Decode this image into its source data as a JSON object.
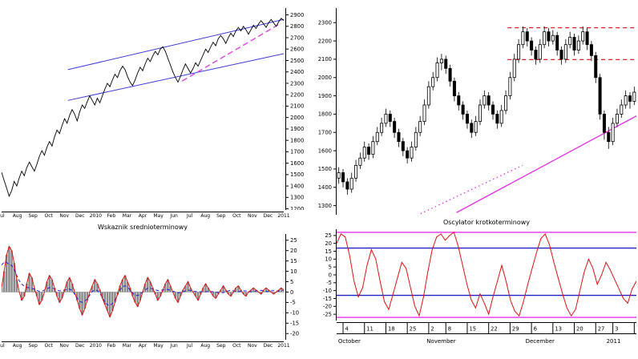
{
  "chart_data": [
    {
      "id": "left-price",
      "type": "line",
      "title": "",
      "ylabel": "",
      "y_min": 1190,
      "y_max": 2960,
      "y_ticks": [
        2900,
        2800,
        2700,
        2600,
        2500,
        2400,
        2300,
        2200,
        2100,
        2000,
        1900,
        1800,
        1700,
        1600,
        1500,
        1400,
        1300,
        1200
      ],
      "x_labels": [
        "Jul",
        "Aug",
        "Sep",
        "Oct",
        "Nov",
        "Dec",
        "2010",
        "Feb",
        "Mar",
        "Apr",
        "May",
        "Jun",
        "Jul",
        "Aug",
        "Sep",
        "Oct",
        "Nov",
        "Dec",
        "2011"
      ],
      "line_color": "#000000",
      "channel_color": "#3b3bd6",
      "channel": {
        "top": {
          "x1": 0.235,
          "y1": 2420,
          "x2": 1.0,
          "y2": 2860
        },
        "bottom": {
          "x1": 0.235,
          "y1": 2150,
          "x2": 1.0,
          "y2": 2560
        }
      },
      "trend_dashed": {
        "color": "#e040e0",
        "x1": 0.64,
        "y1": 2320,
        "x2": 0.985,
        "y2": 2820
      },
      "values": [
        1520,
        1450,
        1380,
        1310,
        1360,
        1440,
        1400,
        1470,
        1530,
        1490,
        1560,
        1610,
        1570,
        1530,
        1590,
        1660,
        1710,
        1670,
        1740,
        1790,
        1750,
        1830,
        1890,
        1860,
        1930,
        1990,
        1950,
        2020,
        2070,
        2030,
        1970,
        2050,
        2110,
        2080,
        2140,
        2190,
        2150,
        2110,
        2170,
        2130,
        2190,
        2250,
        2300,
        2270,
        2330,
        2380,
        2350,
        2410,
        2450,
        2420,
        2360,
        2310,
        2280,
        2330,
        2390,
        2440,
        2410,
        2470,
        2520,
        2490,
        2540,
        2580,
        2550,
        2600,
        2620,
        2580,
        2520,
        2460,
        2400,
        2350,
        2310,
        2360,
        2420,
        2470,
        2430,
        2390,
        2430,
        2480,
        2450,
        2500,
        2550,
        2600,
        2570,
        2620,
        2660,
        2630,
        2690,
        2720,
        2690,
        2650,
        2700,
        2740,
        2710,
        2760,
        2790,
        2760,
        2800,
        2770,
        2730,
        2770,
        2810,
        2780,
        2820,
        2850,
        2820,
        2790,
        2830,
        2860,
        2830,
        2800,
        2840,
        2870,
        2850
      ]
    },
    {
      "id": "left-oscillator",
      "type": "line+histogram",
      "title": "Wskaznik srednioterminowy",
      "y_min": -23,
      "y_max": 28,
      "y_ticks": [
        25,
        20,
        15,
        10,
        5,
        0,
        -5,
        -10,
        -15,
        -20
      ],
      "line_color": "#e01010",
      "signal_color": "#2020dd",
      "hist_color": "#8a8a8a",
      "values": [
        2,
        10,
        18,
        22,
        20,
        14,
        6,
        0,
        -4,
        -2,
        4,
        9,
        7,
        2,
        -2,
        -6,
        -4,
        0,
        5,
        8,
        6,
        2,
        -2,
        -5,
        -3,
        1,
        5,
        7,
        4,
        0,
        -4,
        -8,
        -11,
        -8,
        -4,
        0,
        3,
        6,
        4,
        1,
        -3,
        -6,
        -9,
        -12,
        -9,
        -5,
        -1,
        3,
        6,
        8,
        5,
        2,
        -2,
        -5,
        -7,
        -4,
        0,
        4,
        7,
        5,
        2,
        -1,
        -4,
        -2,
        1,
        4,
        6,
        3,
        0,
        -3,
        -5,
        -2,
        1,
        3,
        5,
        2,
        0,
        -2,
        -4,
        -1,
        2,
        4,
        2,
        0,
        -2,
        -3,
        -1,
        1,
        3,
        1,
        -1,
        -2,
        0,
        2,
        3,
        1,
        -1,
        -2,
        0,
        1,
        2,
        1,
        0,
        -1,
        1,
        2,
        1,
        0,
        -1,
        0,
        1,
        2,
        1
      ]
    },
    {
      "id": "right-price",
      "type": "candlestick",
      "title": "",
      "y_min": 1250,
      "y_max": 2380,
      "y_ticks": [
        2300,
        2200,
        2100,
        2000,
        1900,
        1800,
        1700,
        1600,
        1500,
        1400,
        1300
      ],
      "resistance_color": "#e02020",
      "resistance_lines": [
        {
          "y": 2272,
          "x1": 0.57,
          "x2": 1.0
        },
        {
          "y": 2098,
          "x1": 0.57,
          "x2": 1.0
        }
      ],
      "trend_color": "#e832e8",
      "trend_solid": {
        "x1": 0.4,
        "y1": 1262,
        "x2": 1.0,
        "y2": 1790
      },
      "trend_dotted": {
        "x1": 0.28,
        "y1": 1256,
        "x2": 0.62,
        "y2": 1520
      },
      "candles": [
        [
          1450,
          1510,
          1420,
          1480
        ],
        [
          1480,
          1500,
          1400,
          1430
        ],
        [
          1430,
          1450,
          1360,
          1390
        ],
        [
          1390,
          1480,
          1370,
          1450
        ],
        [
          1450,
          1550,
          1430,
          1520
        ],
        [
          1520,
          1590,
          1500,
          1560
        ],
        [
          1560,
          1650,
          1540,
          1620
        ],
        [
          1620,
          1640,
          1550,
          1580
        ],
        [
          1580,
          1680,
          1560,
          1650
        ],
        [
          1650,
          1730,
          1630,
          1700
        ],
        [
          1700,
          1780,
          1680,
          1750
        ],
        [
          1750,
          1830,
          1730,
          1800
        ],
        [
          1800,
          1820,
          1730,
          1760
        ],
        [
          1760,
          1780,
          1670,
          1700
        ],
        [
          1700,
          1720,
          1620,
          1650
        ],
        [
          1650,
          1670,
          1570,
          1600
        ],
        [
          1600,
          1620,
          1530,
          1560
        ],
        [
          1560,
          1650,
          1540,
          1620
        ],
        [
          1620,
          1730,
          1600,
          1700
        ],
        [
          1700,
          1790,
          1680,
          1760
        ],
        [
          1760,
          1880,
          1740,
          1850
        ],
        [
          1850,
          1980,
          1830,
          1950
        ],
        [
          1950,
          2030,
          1930,
          2000
        ],
        [
          2000,
          2110,
          1980,
          2080
        ],
        [
          2080,
          2130,
          2040,
          2100
        ],
        [
          2100,
          2120,
          2020,
          2050
        ],
        [
          2050,
          2070,
          1950,
          1980
        ],
        [
          1980,
          2000,
          1870,
          1900
        ],
        [
          1900,
          1920,
          1820,
          1850
        ],
        [
          1850,
          1870,
          1770,
          1800
        ],
        [
          1800,
          1820,
          1720,
          1750
        ],
        [
          1750,
          1770,
          1670,
          1700
        ],
        [
          1700,
          1790,
          1680,
          1760
        ],
        [
          1760,
          1880,
          1740,
          1850
        ],
        [
          1850,
          1930,
          1830,
          1900
        ],
        [
          1900,
          1920,
          1820,
          1850
        ],
        [
          1850,
          1870,
          1770,
          1800
        ],
        [
          1800,
          1820,
          1720,
          1750
        ],
        [
          1750,
          1850,
          1730,
          1820
        ],
        [
          1820,
          1930,
          1800,
          1900
        ],
        [
          1900,
          2030,
          1880,
          2000
        ],
        [
          2000,
          2130,
          1980,
          2100
        ],
        [
          2100,
          2210,
          2080,
          2180
        ],
        [
          2180,
          2280,
          2160,
          2250
        ],
        [
          2250,
          2270,
          2170,
          2200
        ],
        [
          2200,
          2220,
          2120,
          2150
        ],
        [
          2150,
          2170,
          2070,
          2100
        ],
        [
          2100,
          2210,
          2080,
          2180
        ],
        [
          2180,
          2280,
          2160,
          2250
        ],
        [
          2250,
          2270,
          2170,
          2200
        ],
        [
          2200,
          2260,
          2180,
          2230
        ],
        [
          2230,
          2250,
          2120,
          2150
        ],
        [
          2150,
          2170,
          2070,
          2100
        ],
        [
          2100,
          2210,
          2080,
          2180
        ],
        [
          2180,
          2250,
          2160,
          2220
        ],
        [
          2220,
          2240,
          2120,
          2150
        ],
        [
          2150,
          2230,
          2130,
          2200
        ],
        [
          2200,
          2280,
          2180,
          2250
        ],
        [
          2250,
          2270,
          2150,
          2180
        ],
        [
          2180,
          2200,
          2090,
          2120
        ],
        [
          2120,
          2140,
          1970,
          2000
        ],
        [
          2000,
          2020,
          1770,
          1800
        ],
        [
          1800,
          1820,
          1660,
          1700
        ],
        [
          1700,
          1730,
          1610,
          1650
        ],
        [
          1650,
          1780,
          1630,
          1750
        ],
        [
          1750,
          1830,
          1730,
          1800
        ],
        [
          1800,
          1880,
          1780,
          1850
        ],
        [
          1850,
          1930,
          1830,
          1900
        ],
        [
          1900,
          1920,
          1830,
          1870
        ],
        [
          1870,
          1950,
          1850,
          1920
        ]
      ],
      "x_day_ticks": [
        {
          "label": "4",
          "i": 1
        },
        {
          "label": "11",
          "i": 6
        },
        {
          "label": "18",
          "i": 11
        },
        {
          "label": "25",
          "i": 16
        },
        {
          "label": "2",
          "i": 21
        },
        {
          "label": "8",
          "i": 25
        },
        {
          "label": "15",
          "i": 30
        },
        {
          "label": "22",
          "i": 35
        },
        {
          "label": "29",
          "i": 40
        },
        {
          "label": "6",
          "i": 45
        },
        {
          "label": "13",
          "i": 50
        },
        {
          "label": "20",
          "i": 55
        },
        {
          "label": "27",
          "i": 60
        },
        {
          "label": "3",
          "i": 64
        },
        {
          "label": "10",
          "i": 69
        }
      ],
      "x_months": [
        {
          "label": "October",
          "pos": 0.005
        },
        {
          "label": "November",
          "pos": 0.3
        },
        {
          "label": "December",
          "pos": 0.63
        },
        {
          "label": "2011",
          "pos": 0.9
        }
      ]
    },
    {
      "id": "right-oscillator",
      "type": "line",
      "title": "Oscylator krotkoterminowy",
      "y_min": -29,
      "y_max": 29,
      "y_ticks": [
        25,
        20,
        15,
        10,
        5,
        0,
        -5,
        -10,
        -15,
        -20,
        -25
      ],
      "line_color": "#e01010",
      "levels": [
        {
          "y": 27,
          "color": "#e832e8"
        },
        {
          "y": -27,
          "color": "#e832e8"
        },
        {
          "y": 17,
          "color": "#2020c8"
        },
        {
          "y": -13,
          "color": "#2020c8"
        }
      ],
      "values": [
        20,
        26,
        24,
        12,
        -4,
        -14,
        -8,
        6,
        16,
        10,
        -4,
        -17,
        -22,
        -12,
        -2,
        8,
        4,
        -8,
        -20,
        -26,
        -14,
        2,
        16,
        24,
        26,
        22,
        25,
        27,
        18,
        6,
        -6,
        -16,
        -21,
        -12,
        -18,
        -25,
        -14,
        -4,
        6,
        -4,
        -16,
        -23,
        -26,
        -17,
        -6,
        4,
        14,
        23,
        26,
        19,
        8,
        -2,
        -12,
        -21,
        -26,
        -22,
        -10,
        2,
        10,
        4,
        -6,
        0,
        8,
        3,
        -3,
        -9,
        -15,
        -18,
        -9,
        -4
      ]
    }
  ]
}
